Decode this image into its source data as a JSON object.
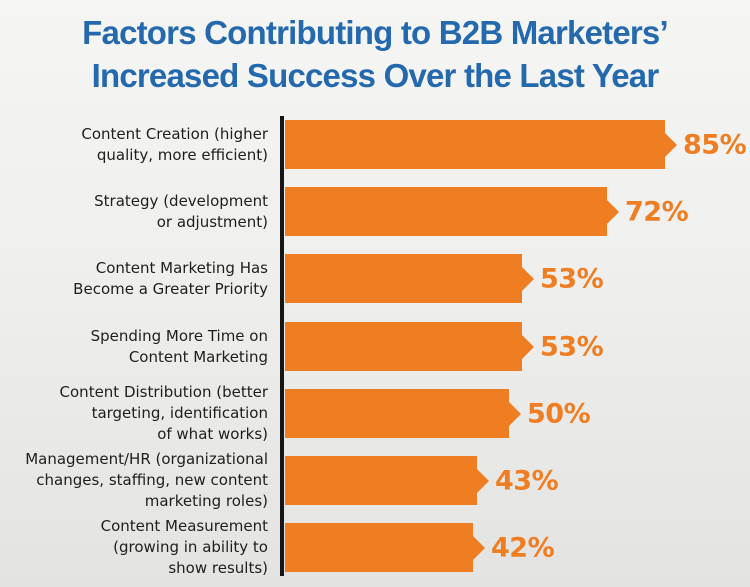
{
  "title": {
    "line1": "Factors Contributing to B2B Marketers’",
    "line2": "Increased Success Over the Last Year"
  },
  "colors": {
    "title_blue": "#2468AE",
    "bar_orange": "#EF7D22",
    "axis_black": "#161616",
    "label_dark": "#1E1E1C",
    "background_top": "#F5F5F3",
    "background_bottom": "#E3E3E1"
  },
  "chart_data": {
    "type": "bar",
    "orientation": "horizontal",
    "title": "Factors Contributing to B2B Marketers’ Increased Success Over the Last Year",
    "xlabel": "",
    "ylabel": "",
    "xlim": [
      0,
      100
    ],
    "grid": false,
    "legend": false,
    "categories": [
      "Content Creation (higher quality, more efficient)",
      "Strategy (development or adjustment)",
      "Content Marketing Has Become a Greater Priority",
      "Spending More Time on Content Marketing",
      "Content Distribution (better targeting, identification of what works)",
      "Management/HR (organizational changes, staffing, new content marketing roles)",
      "Content Measurement (growing in ability to show results)"
    ],
    "category_lines": [
      [
        "Content Creation (higher",
        "quality, more efficient)"
      ],
      [
        "Strategy (development",
        "or adjustment)"
      ],
      [
        "Content Marketing Has",
        "Become a Greater Priority"
      ],
      [
        "Spending More Time on",
        "Content Marketing"
      ],
      [
        "Content Distribution (better",
        "targeting, identification",
        "of what works)"
      ],
      [
        "Management/HR (organizational",
        "changes, staffing, new content",
        "marketing roles)"
      ],
      [
        "Content Measurement",
        "(growing in ability to",
        "show results)"
      ]
    ],
    "values": [
      85,
      72,
      53,
      53,
      50,
      43,
      42
    ],
    "value_labels": [
      "85%",
      "72%",
      "53%",
      "53%",
      "50%",
      "43%",
      "42%"
    ]
  }
}
